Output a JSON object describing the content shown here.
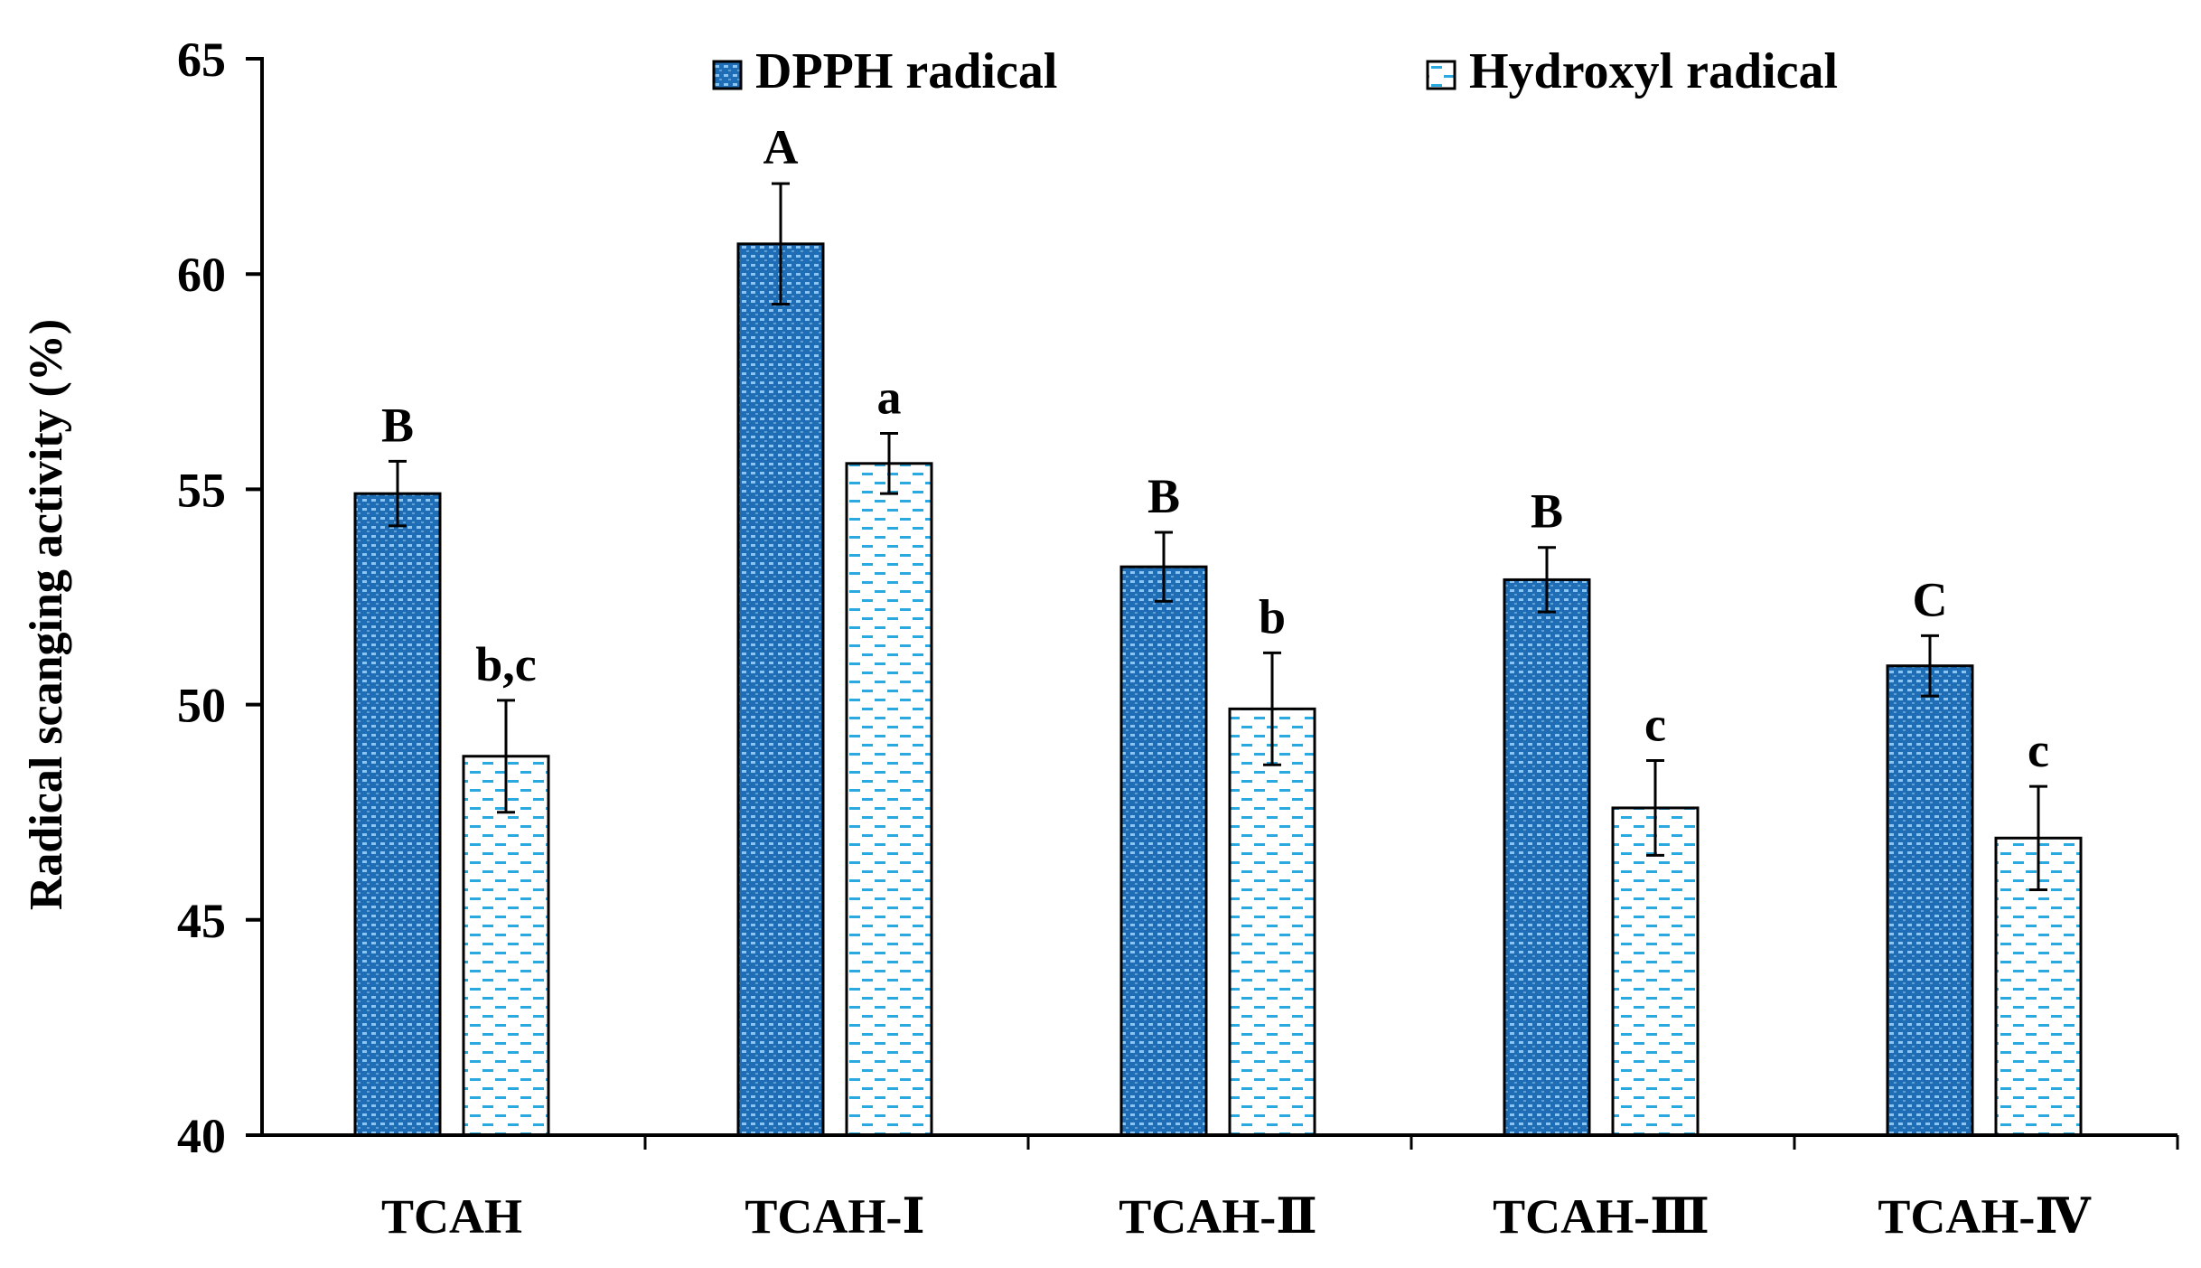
{
  "chart_data": {
    "type": "bar",
    "title": "",
    "xlabel": "",
    "ylabel": "Radical scanging activity (%)",
    "ylim": [
      40,
      65
    ],
    "yticks": [
      40,
      45,
      50,
      55,
      60,
      65
    ],
    "grid": false,
    "legend_position": "top",
    "categories": [
      "TCAH",
      "TCAH-Ⅰ",
      "TCAH-Ⅱ",
      "TCAH-Ⅲ",
      "TCAH-Ⅳ"
    ],
    "series": [
      {
        "name": "DPPH radical",
        "values": [
          54.9,
          60.7,
          53.2,
          52.9,
          50.9
        ],
        "errors": [
          0.75,
          1.4,
          0.8,
          0.75,
          0.7
        ],
        "labels": [
          "B",
          "A",
          "B",
          "B",
          "C"
        ],
        "color": "#1e6db5",
        "pattern": "dots"
      },
      {
        "name": "Hydroxyl radical",
        "values": [
          48.8,
          55.6,
          49.9,
          47.6,
          46.9
        ],
        "errors": [
          1.3,
          0.7,
          1.3,
          1.1,
          1.2
        ],
        "labels": [
          "b,c",
          "a",
          "b",
          "c",
          "c"
        ],
        "color": "#2aa8e0",
        "pattern": "dashes"
      }
    ]
  }
}
